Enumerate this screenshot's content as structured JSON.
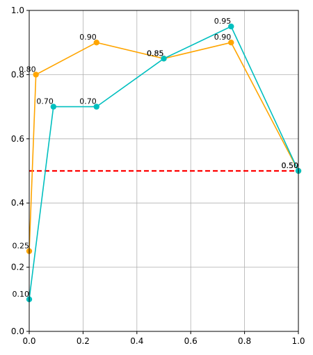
{
  "chart_data": {
    "type": "line",
    "title": "",
    "xlabel": "",
    "ylabel": "",
    "xlim": [
      0,
      1
    ],
    "ylim": [
      0,
      1
    ],
    "grid": true,
    "x_ticks": [
      "0.0",
      "0.2",
      "0.4",
      "0.6",
      "0.8",
      "1.0"
    ],
    "y_ticks": [
      "0.0",
      "0.2",
      "0.4",
      "0.6",
      "0.8",
      "1.0"
    ],
    "series": [
      {
        "color": "#ffa500",
        "points": [
          {
            "x": 0.0,
            "y": 0.25,
            "label": "0.25"
          },
          {
            "x": 0.025,
            "y": 0.8,
            "label": "0.80"
          },
          {
            "x": 0.25,
            "y": 0.9,
            "label": "0.90"
          },
          {
            "x": 0.5,
            "y": 0.85,
            "label": "0.85"
          },
          {
            "x": 0.75,
            "y": 0.9,
            "label": "0.90"
          },
          {
            "x": 1.0,
            "y": 0.5,
            "label": "0.50"
          }
        ]
      },
      {
        "color": "#00bfbf",
        "points": [
          {
            "x": 0.0,
            "y": 0.1,
            "label": "0.10"
          },
          {
            "x": 0.09,
            "y": 0.7,
            "label": "0.70"
          },
          {
            "x": 0.25,
            "y": 0.7,
            "label": "0.70"
          },
          {
            "x": 0.5,
            "y": 0.85,
            "label": "0.85"
          },
          {
            "x": 0.75,
            "y": 0.95,
            "label": "0.95"
          },
          {
            "x": 1.0,
            "y": 0.5,
            "label": "0.50"
          }
        ]
      }
    ],
    "reference_line": {
      "y": 0.5,
      "color": "#ff0000",
      "style": "dashed"
    }
  }
}
